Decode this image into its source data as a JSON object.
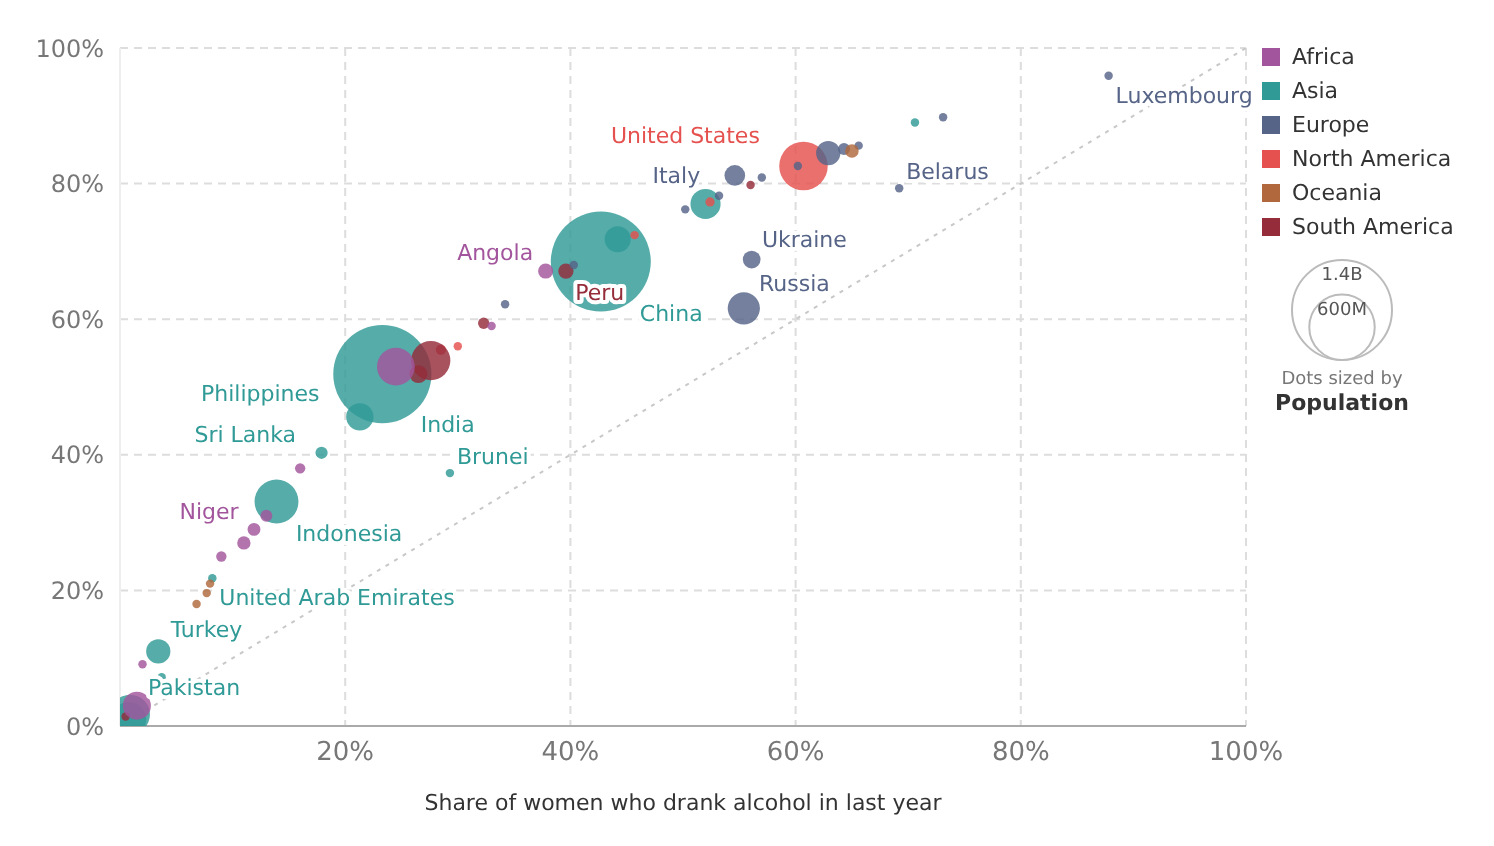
{
  "chart_data": {
    "type": "bubble",
    "xlabel": "Share of women who drank alcohol in last year",
    "xlim": [
      0,
      100
    ],
    "ylim": [
      0,
      100
    ],
    "xticks": [
      {
        "value": 0,
        "label": null
      },
      {
        "value": 20,
        "label": "20%"
      },
      {
        "value": 40,
        "label": "40%"
      },
      {
        "value": 60,
        "label": "60%"
      },
      {
        "value": 80,
        "label": "80%"
      },
      {
        "value": 100,
        "label": "100%"
      }
    ],
    "yticks": [
      {
        "value": 0,
        "label": "0%"
      },
      {
        "value": 20,
        "label": "20%"
      },
      {
        "value": 40,
        "label": "40%"
      },
      {
        "value": 60,
        "label": "60%"
      },
      {
        "value": 80,
        "label": "80%"
      },
      {
        "value": 100,
        "label": "100%"
      }
    ],
    "grid": true,
    "legend": "top right",
    "size_legend": [
      {
        "value": 600,
        "label": "600M"
      },
      {
        "value": 1400,
        "label": "1.4B"
      }
    ],
    "series": [
      {
        "name": "Africa",
        "color": "#a2559c",
        "x": [
          37.8,
          11.9,
          2,
          24.5,
          1.5,
          13,
          16,
          11,
          33,
          9
        ],
        "values": [
          67.1,
          29,
          9.1,
          53,
          3,
          31,
          38,
          27,
          59,
          25
        ],
        "sizes": [
          32,
          23,
          10,
          200,
          110,
          20,
          15,
          25,
          10,
          15
        ]
      },
      {
        "name": "Asia",
        "color": "#2f9a96",
        "x": [
          42.7,
          23.3,
          13.9,
          21.3,
          0.9,
          3.4,
          8.2,
          17.9,
          29.3,
          3.7,
          52,
          44.2,
          70.6,
          0.8
        ],
        "values": [
          68.5,
          51.9,
          33.1,
          45.6,
          1.7,
          11,
          21.8,
          40.3,
          37.3,
          7.2,
          77,
          71.8,
          89,
          1
        ],
        "sizes": [
          1400,
          1350,
          270,
          105,
          220,
          82,
          10,
          21,
          10,
          10,
          127,
          95,
          10,
          165
        ]
      },
      {
        "name": "Europe",
        "color": "#566487",
        "x": [
          87.8,
          54.6,
          69.2,
          56.1,
          55.4,
          62.9,
          73.1,
          64.3,
          65.6,
          50.2,
          53.2,
          57,
          60.2,
          40.3,
          34.2
        ],
        "values": [
          95.9,
          81.2,
          79.3,
          68.8,
          61.6,
          84.5,
          89.8,
          85.1,
          85.6,
          76.2,
          78.2,
          80.9,
          82.6,
          68,
          62.2
        ],
        "sizes": [
          10,
          60,
          10,
          44,
          145,
          83,
          10,
          20,
          10,
          10,
          10,
          10,
          10,
          10,
          10
        ]
      },
      {
        "name": "North America",
        "color": "#e5514e",
        "x": [
          60.7,
          52.4,
          45.7,
          28.5,
          30
        ],
        "values": [
          82.6,
          77.3,
          72.4,
          55.5,
          56
        ],
        "sizes": [
          330,
          12,
          10,
          15,
          10
        ]
      },
      {
        "name": "Oceania",
        "color": "#b0683c",
        "x": [
          6.8,
          7.7,
          8,
          65
        ],
        "values": [
          18,
          19.6,
          21,
          84.8
        ],
        "sizes": [
          10,
          10,
          10,
          26
        ]
      },
      {
        "name": "South America",
        "color": "#952c3a",
        "x": [
          39.6,
          27.6,
          32.3,
          56,
          26.5,
          0.5
        ],
        "values": [
          67.1,
          53.9,
          59.4,
          79.8,
          51.9,
          1.4
        ],
        "sizes": [
          33,
          215,
          18,
          10,
          45,
          10
        ]
      },
      {
        "type": "line",
        "color": "#c8c8c8",
        "line_style": "dotted",
        "x": [
          0,
          100
        ],
        "values": [
          0,
          100
        ]
      }
    ],
    "annotations": [
      {
        "text": "Luxembourg",
        "x": 87.8,
        "y": 95.9
      },
      {
        "text": "United States",
        "x": 60.7,
        "y": 82.6
      },
      {
        "text": "Italy",
        "x": 54.6,
        "y": 81.2
      },
      {
        "text": "Belarus",
        "x": 69.2,
        "y": 79.3
      },
      {
        "text": "China",
        "x": 42.7,
        "y": 68.5
      },
      {
        "text": "Ukraine",
        "x": 56.1,
        "y": 68.8
      },
      {
        "text": "Russia",
        "x": 55.4,
        "y": 61.6
      },
      {
        "text": "Peru",
        "x": 39.6,
        "y": 67.1
      },
      {
        "text": "Angola",
        "x": 37.8,
        "y": 67.1
      },
      {
        "text": "India",
        "x": 23.3,
        "y": 51.9
      },
      {
        "text": "Philippines",
        "x": 21.3,
        "y": 45.6
      },
      {
        "text": "Sri Lanka",
        "x": 17.9,
        "y": 40.3
      },
      {
        "text": "Brunei",
        "x": 29.3,
        "y": 37.3
      },
      {
        "text": "Indonesia",
        "x": 13.9,
        "y": 33.1
      },
      {
        "text": "Niger",
        "x": 11.9,
        "y": 29
      },
      {
        "text": "United Arab Emirates",
        "x": 8.2,
        "y": 21.8
      },
      {
        "text": "Turkey",
        "x": 3.4,
        "y": 11
      },
      {
        "text": "Pakistan",
        "x": 0.9,
        "y": 1.7
      },
      "Dots sized by",
      "Population"
    ]
  }
}
